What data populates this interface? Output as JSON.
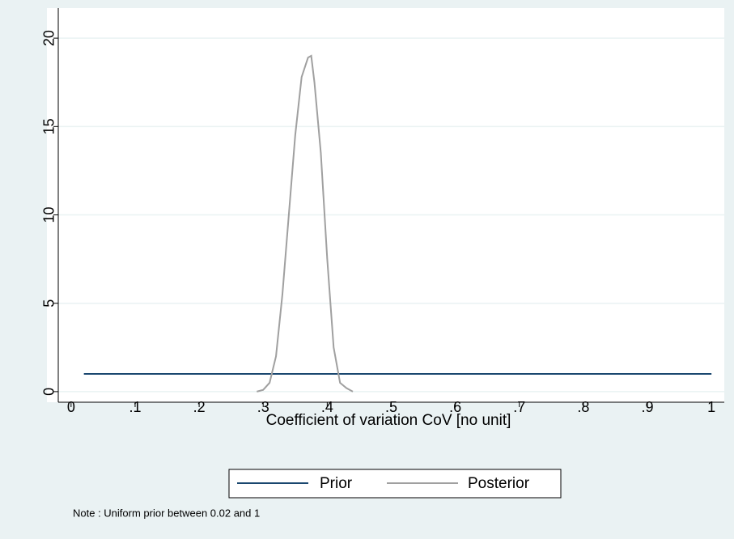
{
  "chart_data": {
    "type": "line",
    "xlabel": "Coefficient of variation CoV [no unit]",
    "note": "Note : Uniform prior between 0.02 and 1",
    "xlim": [
      -0.02,
      1.02
    ],
    "ylim": [
      -0.6,
      21.7
    ],
    "xticks": [
      0,
      {
        "value": 0.1,
        "label": ".1"
      },
      {
        "value": 0.2,
        "label": ".2"
      },
      {
        "value": 0.3,
        "label": ".3"
      },
      {
        "value": 0.4,
        "label": ".4"
      },
      {
        "value": 0.5,
        "label": ".5"
      },
      {
        "value": 0.6,
        "label": ".6"
      },
      {
        "value": 0.7,
        "label": ".7"
      },
      {
        "value": 0.8,
        "label": ".8"
      },
      {
        "value": 0.9,
        "label": ".9"
      },
      1
    ],
    "yticks": [
      0,
      5,
      10,
      15,
      20
    ],
    "grid": true,
    "legend": "bottom",
    "series": [
      {
        "name": "Prior",
        "color": "#1a476f",
        "x": [
          0.02,
          1
        ],
        "values": [
          1,
          1
        ]
      },
      {
        "name": "Posterior",
        "color": "#a0a0a0",
        "x": [
          0.29,
          0.3,
          0.31,
          0.32,
          0.33,
          0.34,
          0.35,
          0.36,
          0.37,
          0.375,
          0.38,
          0.39,
          0.4,
          0.41,
          0.42,
          0.43,
          0.44
        ],
        "values": [
          0,
          0.1,
          0.5,
          2,
          5.5,
          10,
          14.5,
          17.8,
          18.9,
          19,
          17.5,
          13.5,
          7.5,
          2.5,
          0.5,
          0.2,
          0
        ]
      }
    ]
  }
}
